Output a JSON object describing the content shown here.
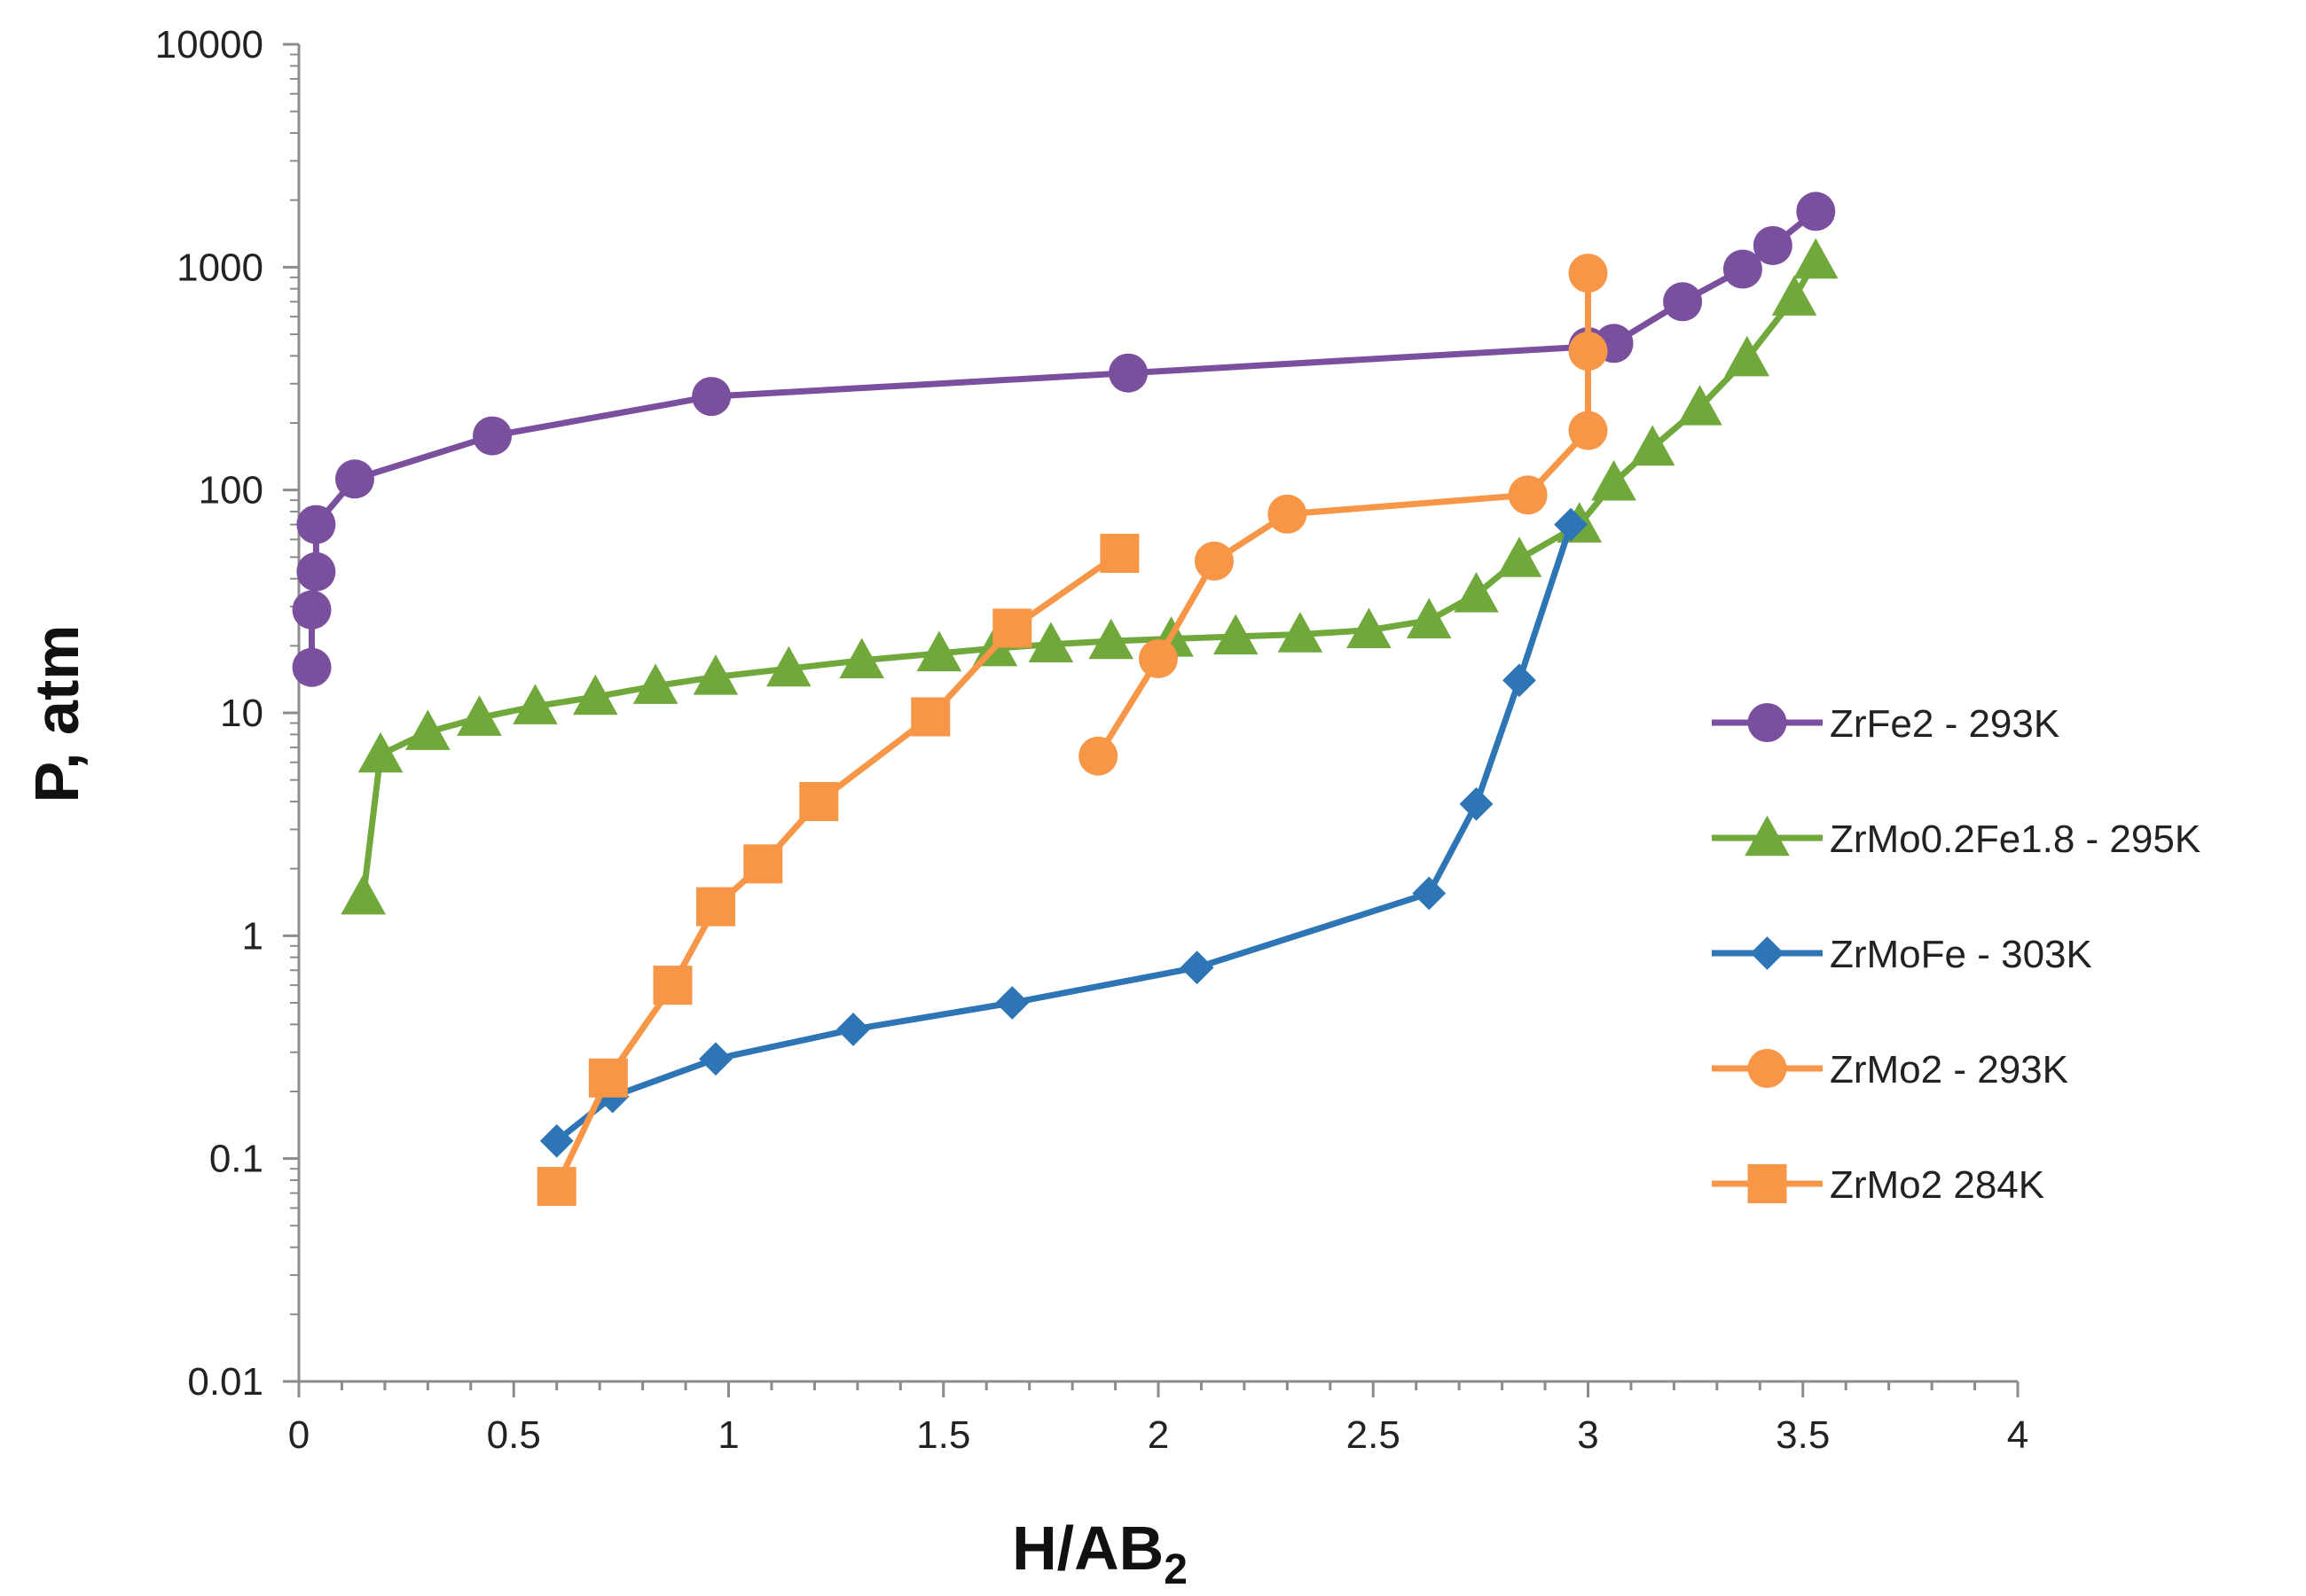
{
  "chart_data": {
    "type": "line",
    "title": "",
    "xlabel": "H/AB",
    "xlabel_subscript": "2",
    "ylabel": "P, atm",
    "xlim": [
      0,
      4
    ],
    "ylim": [
      0.01,
      10000
    ],
    "yscale": "log",
    "grid": false,
    "legend_position": "right",
    "x_ticks": [
      "0",
      "0.5",
      "1",
      "1.5",
      "2",
      "2.5",
      "3",
      "3.5",
      "4"
    ],
    "y_ticks": [
      "0.01",
      "0.1",
      "1",
      "10",
      "100",
      "1000",
      "10000"
    ],
    "series": [
      {
        "name": "ZrFe2 - 293K",
        "color": "#7a4f9e",
        "marker": "circle",
        "points": [
          [
            0.03,
            16
          ],
          [
            0.03,
            29
          ],
          [
            0.04,
            43
          ],
          [
            0.04,
            70
          ],
          [
            0.13,
            112
          ],
          [
            0.45,
            175
          ],
          [
            0.96,
            263
          ],
          [
            1.93,
            335
          ],
          [
            3.0,
            440
          ],
          [
            3.06,
            455
          ],
          [
            3.22,
            700
          ],
          [
            3.36,
            980
          ],
          [
            3.43,
            1250
          ],
          [
            3.53,
            1780
          ]
        ]
      },
      {
        "name": "ZrMo0.2Fe1.8 - 295K",
        "color": "#70a83c",
        "marker": "triangle",
        "points": [
          [
            0.15,
            1.5
          ],
          [
            0.19,
            6.5
          ],
          [
            0.3,
            8.2
          ],
          [
            0.42,
            9.5
          ],
          [
            0.55,
            10.7
          ],
          [
            0.69,
            11.8
          ],
          [
            0.83,
            13.2
          ],
          [
            0.97,
            14.5
          ],
          [
            1.14,
            15.8
          ],
          [
            1.31,
            17.2
          ],
          [
            1.49,
            18.5
          ],
          [
            1.62,
            19.5
          ],
          [
            1.75,
            20.3
          ],
          [
            1.89,
            21
          ],
          [
            2.03,
            21.5
          ],
          [
            2.18,
            22
          ],
          [
            2.33,
            22.5
          ],
          [
            2.49,
            23.5
          ],
          [
            2.63,
            26
          ],
          [
            2.74,
            34
          ],
          [
            2.84,
            49
          ],
          [
            2.98,
            70
          ],
          [
            3.06,
            108
          ],
          [
            3.15,
            155
          ],
          [
            3.26,
            235
          ],
          [
            3.37,
            390
          ],
          [
            3.48,
            730
          ],
          [
            3.53,
            1070
          ]
        ]
      },
      {
        "name": "ZrMoFe - 303K",
        "color": "#2e75b6",
        "marker": "diamond",
        "points": [
          [
            0.6,
            0.12
          ],
          [
            0.73,
            0.19
          ],
          [
            0.97,
            0.28
          ],
          [
            1.29,
            0.38
          ],
          [
            1.66,
            0.5
          ],
          [
            2.09,
            0.72
          ],
          [
            2.63,
            1.55
          ],
          [
            2.74,
            3.9
          ],
          [
            2.84,
            14
          ],
          [
            2.96,
            70
          ]
        ]
      },
      {
        "name": "ZrMo2 - 293K",
        "color": "#f79646",
        "marker": "circle",
        "points": [
          [
            1.86,
            6.4
          ],
          [
            2.0,
            17.5
          ],
          [
            2.13,
            48
          ],
          [
            2.3,
            78
          ],
          [
            2.86,
            95
          ],
          [
            3.0,
            185
          ],
          [
            3.0,
            420
          ],
          [
            3.0,
            940
          ]
        ]
      },
      {
        "name": "ZrMo2 284K",
        "color": "#f79646",
        "marker": "square",
        "points": [
          [
            0.6,
            0.075
          ],
          [
            0.72,
            0.23
          ],
          [
            0.87,
            0.6
          ],
          [
            0.97,
            1.35
          ],
          [
            1.08,
            2.1
          ],
          [
            1.21,
            4
          ],
          [
            1.47,
            9.6
          ],
          [
            1.66,
            24
          ],
          [
            1.91,
            52
          ]
        ]
      }
    ]
  }
}
